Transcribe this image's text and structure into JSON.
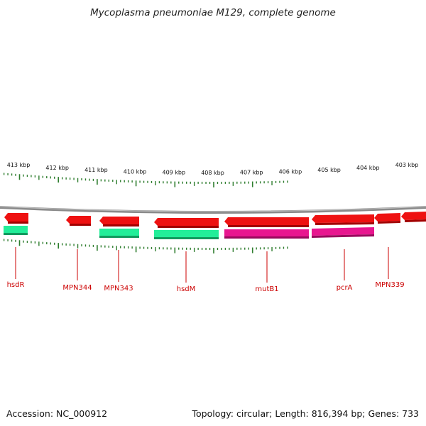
{
  "title": "Mycoplasma pneumoniae M129, complete genome",
  "accession": "Accession: NC_000912",
  "topology": "Topology: circular; Length: 816,394 bp; Genes: 733",
  "colors": {
    "backbone": "#8a8a8a",
    "tick": "#2e7d2e",
    "gene_red": "#ee1111",
    "gene_green": "#22ee99",
    "gene_magenta": "#e8168f",
    "label": "#cc0000"
  },
  "kbp_labels": [
    "413 kbp",
    "412 kbp",
    "411 kbp",
    "410 kbp",
    "409 kbp",
    "408 kbp",
    "407 kbp",
    "406 kbp",
    "405 kbp",
    "404 kbp",
    "403 kbp"
  ],
  "gene_labels": [
    "hsdR",
    "MPN344",
    "MPN343",
    "hsdM",
    "mutB1",
    "pcrA",
    "MPN339"
  ]
}
